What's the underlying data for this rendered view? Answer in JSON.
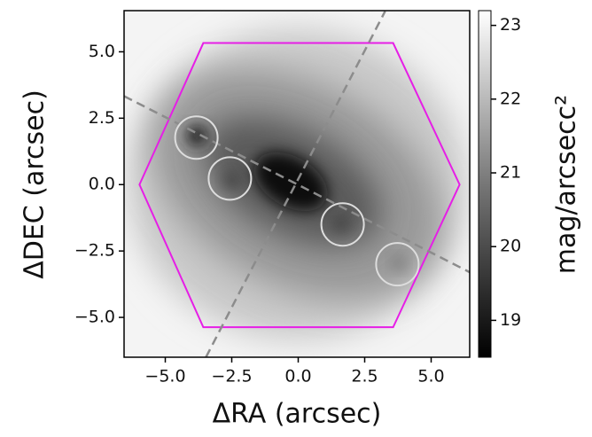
{
  "chart_data": {
    "type": "heatmap",
    "xlabel": "ΔRA (arcsec)",
    "ylabel": "ΔDEC (arcsec)",
    "colorbar_label": "mag/arcsecc²",
    "xlim": [
      -6.55,
      6.45
    ],
    "ylim": [
      -6.5,
      6.55
    ],
    "xticks": [
      {
        "value": -5,
        "label": "−5.0"
      },
      {
        "value": -2.5,
        "label": "−2.5"
      },
      {
        "value": 0,
        "label": "0.0"
      },
      2.5,
      {
        "value": 5,
        "label": "5.0"
      }
    ],
    "yticks": [
      {
        "value": -5,
        "label": "−5.0"
      },
      {
        "value": -2.5,
        "label": "−2.5"
      },
      {
        "value": 0,
        "label": "0.0"
      },
      2.5,
      {
        "value": 5,
        "label": "5.0"
      }
    ],
    "clim": [
      18.5,
      23.2
    ],
    "cticks": [
      19,
      20,
      21,
      22,
      23
    ],
    "hexagon": {
      "color": "#e61ee6",
      "x": [
        -5.97,
        -3.57,
        3.57,
        6.07,
        3.57,
        -3.57
      ],
      "y": [
        0,
        5.33,
        5.33,
        0,
        -5.37,
        -5.37
      ]
    },
    "circles": {
      "color": "#dddddd",
      "radius": 0.8,
      "x": [
        -3.83,
        -2.57,
        1.67,
        3.73
      ],
      "y": [
        1.77,
        0.23,
        -1.5,
        -3.0
      ]
    },
    "lines": {
      "color": "#8c8c8c",
      "style": "dashed",
      "items": [
        {
          "x": [
            -6.55,
            6.45
          ],
          "y": [
            3.33,
            -3.3
          ]
        },
        {
          "x": [
            -3.47,
            3.27
          ],
          "y": [
            -6.5,
            6.53
          ]
        }
      ]
    }
  }
}
